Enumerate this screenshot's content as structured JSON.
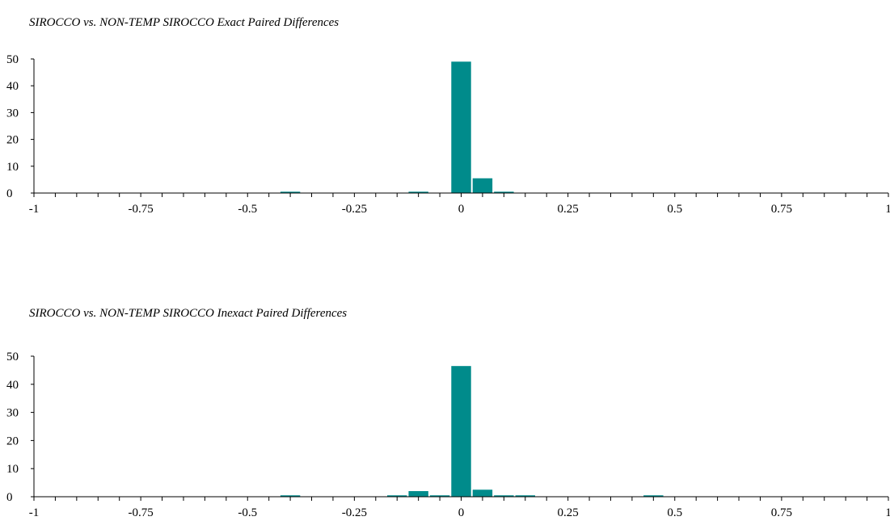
{
  "chart_data": [
    {
      "type": "bar",
      "title": "SIROCCO vs. NON-TEMP SIROCCO Exact Paired Differences",
      "xlabel": "",
      "ylabel": "",
      "xlim": [
        -1,
        1
      ],
      "ylim": [
        0,
        50
      ],
      "x_ticks": [
        -1,
        -0.75,
        -0.5,
        -0.25,
        0,
        0.25,
        0.5,
        0.75,
        1
      ],
      "y_ticks": [
        0,
        10,
        20,
        30,
        40,
        50
      ],
      "bar_width": 0.05,
      "bars": [
        {
          "x": -0.4,
          "value": 0.5
        },
        {
          "x": -0.1,
          "value": 0.5
        },
        {
          "x": 0.0,
          "value": 49
        },
        {
          "x": 0.05,
          "value": 5.5
        },
        {
          "x": 0.1,
          "value": 0.5
        }
      ],
      "grid": false,
      "legend": "none",
      "bar_color": "#008B8B"
    },
    {
      "type": "bar",
      "title": "SIROCCO vs. NON-TEMP SIROCCO Inexact Paired Differences",
      "xlabel": "",
      "ylabel": "",
      "xlim": [
        -1,
        1
      ],
      "ylim": [
        0,
        50
      ],
      "x_ticks": [
        -1,
        -0.75,
        -0.5,
        -0.25,
        0,
        0.25,
        0.5,
        0.75,
        1
      ],
      "y_ticks": [
        0,
        10,
        20,
        30,
        40,
        50
      ],
      "bar_width": 0.05,
      "bars": [
        {
          "x": -0.4,
          "value": 0.5
        },
        {
          "x": -0.15,
          "value": 0.5
        },
        {
          "x": -0.1,
          "value": 2
        },
        {
          "x": -0.05,
          "value": 0.5
        },
        {
          "x": 0.0,
          "value": 46.5
        },
        {
          "x": 0.05,
          "value": 2.5
        },
        {
          "x": 0.1,
          "value": 0.5
        },
        {
          "x": 0.15,
          "value": 0.5
        },
        {
          "x": 0.45,
          "value": 0.5
        }
      ],
      "grid": false,
      "legend": "none",
      "bar_color": "#008B8B"
    }
  ]
}
